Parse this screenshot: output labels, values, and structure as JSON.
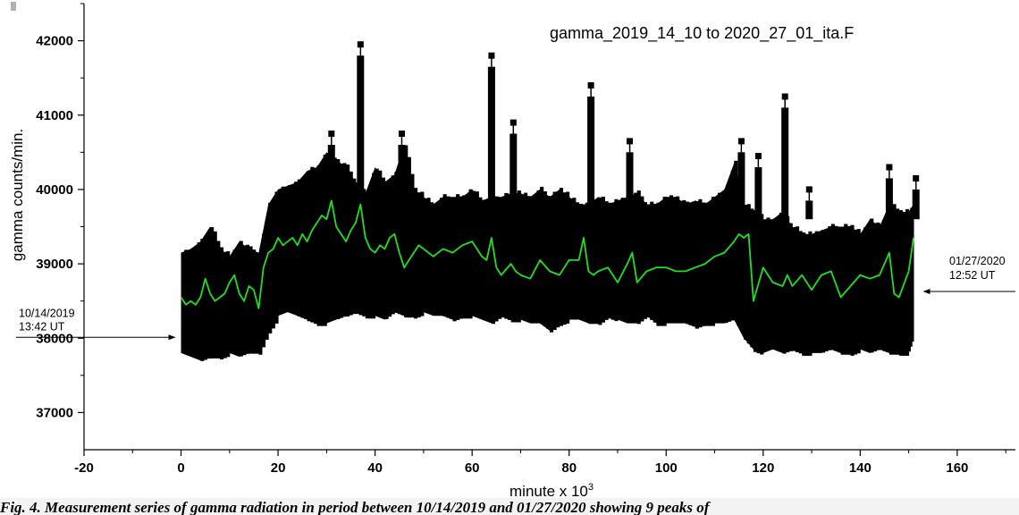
{
  "chart_data": {
    "type": "line",
    "title": "gamma_2019_14_10 to 2020_27_01_ita.F",
    "xlabel": "minute x 10",
    "xlabel_superscript": "3",
    "ylabel": "gamma counts/min.",
    "xlim": [
      -20,
      172
    ],
    "ylim": [
      36500,
      42500
    ],
    "x_ticks": [
      -20,
      0,
      20,
      40,
      60,
      80,
      100,
      120,
      140,
      160
    ],
    "y_ticks": [
      37000,
      38000,
      39000,
      40000,
      41000,
      42000
    ],
    "grid": false,
    "series": [
      {
        "style": "black-band-with-errorbars",
        "color": "#000000",
        "x": [
          0,
          2,
          4,
          6,
          8,
          10,
          12,
          14,
          16,
          18,
          20,
          22,
          24,
          26,
          28,
          30,
          32,
          34,
          36,
          38,
          40,
          42,
          44,
          46,
          48,
          50,
          52,
          54,
          56,
          58,
          60,
          62,
          64,
          66,
          68,
          70,
          72,
          74,
          76,
          78,
          80,
          82,
          84,
          86,
          88,
          90,
          92,
          94,
          96,
          98,
          100,
          102,
          104,
          106,
          108,
          110,
          112,
          114,
          116,
          118,
          120,
          122,
          124,
          126,
          128,
          130,
          132,
          134,
          136,
          138,
          140,
          142,
          144,
          146,
          148,
          150,
          151
        ],
        "lower": [
          37800,
          37750,
          37700,
          37750,
          37750,
          37800,
          37750,
          37800,
          37800,
          38100,
          38300,
          38350,
          38300,
          38250,
          38200,
          38200,
          38250,
          38300,
          38350,
          38300,
          38300,
          38250,
          38350,
          38300,
          38300,
          38350,
          38300,
          38300,
          38250,
          38300,
          38300,
          38250,
          38200,
          38300,
          38250,
          38250,
          38200,
          38200,
          38100,
          38200,
          38250,
          38250,
          38200,
          38200,
          38300,
          38250,
          38200,
          38200,
          38300,
          38200,
          38200,
          38200,
          38200,
          38150,
          38200,
          38200,
          38200,
          38250,
          38000,
          37850,
          37800,
          37850,
          37800,
          37850,
          37800,
          37800,
          37800,
          37850,
          37800,
          37800,
          37850,
          37800,
          37850,
          37800,
          37800,
          37800,
          38000
        ],
        "upper": [
          39150,
          39200,
          39300,
          39500,
          39200,
          39100,
          39300,
          39200,
          39150,
          39800,
          40000,
          40050,
          40100,
          40250,
          40300,
          40500,
          40400,
          40300,
          40100,
          39950,
          40300,
          40100,
          40200,
          40600,
          40000,
          39900,
          39800,
          39900,
          39900,
          39900,
          40000,
          39850,
          39900,
          39900,
          39950,
          39950,
          39900,
          40000,
          39900,
          40000,
          39900,
          39800,
          39800,
          39900,
          39800,
          39850,
          39900,
          39950,
          39800,
          39800,
          39900,
          39900,
          39800,
          39850,
          39800,
          39900,
          40000,
          40350,
          39800,
          39700,
          39600,
          39600,
          39700,
          39500,
          39400,
          39400,
          39450,
          39500,
          39500,
          39500,
          39400,
          39600,
          39500,
          39800,
          39700,
          39700,
          39800
        ],
        "spikes": [
          {
            "x": 31,
            "y": 40750
          },
          {
            "x": 37,
            "y": 41950
          },
          {
            "x": 45.5,
            "y": 40750
          },
          {
            "x": 64,
            "y": 41800
          },
          {
            "x": 68.5,
            "y": 40900
          },
          {
            "x": 84.5,
            "y": 41400
          },
          {
            "x": 92.5,
            "y": 40650
          },
          {
            "x": 115.5,
            "y": 40650
          },
          {
            "x": 119,
            "y": 40450
          },
          {
            "x": 124.5,
            "y": 41250
          },
          {
            "x": 129.5,
            "y": 40000
          },
          {
            "x": 146,
            "y": 40300
          },
          {
            "x": 151.5,
            "y": 40150
          }
        ]
      },
      {
        "style": "smoothed-line",
        "color": "#22dd22",
        "x": [
          0,
          1,
          2,
          3,
          4,
          5,
          6,
          7,
          8,
          9,
          10,
          11,
          12,
          13,
          14,
          15,
          16,
          17,
          18,
          19,
          20,
          21,
          22,
          23,
          24,
          25,
          26,
          27,
          28,
          29,
          30,
          31,
          32,
          33,
          34,
          35,
          36,
          37,
          38,
          39,
          40,
          41,
          42,
          43,
          44,
          45,
          46,
          47,
          48,
          49,
          50,
          52,
          54,
          56,
          58,
          60,
          62,
          63,
          64,
          65,
          66,
          68,
          69,
          70,
          72,
          74,
          76,
          78,
          80,
          82,
          83,
          84,
          85,
          86,
          88,
          90,
          92,
          93,
          94,
          96,
          98,
          100,
          102,
          104,
          106,
          108,
          110,
          112,
          114,
          115,
          116,
          117,
          118,
          120,
          122,
          124,
          125,
          126,
          128,
          130,
          132,
          134,
          136,
          138,
          140,
          142,
          144,
          146,
          147,
          148,
          150,
          151
        ],
        "y": [
          38550,
          38450,
          38500,
          38450,
          38550,
          38800,
          38600,
          38500,
          38550,
          38600,
          38750,
          38850,
          38600,
          38500,
          38700,
          38650,
          38400,
          38950,
          39150,
          39200,
          39350,
          39250,
          39300,
          39350,
          39250,
          39400,
          39300,
          39450,
          39550,
          39650,
          39600,
          39850,
          39500,
          39400,
          39300,
          39450,
          39550,
          39800,
          39350,
          39200,
          39150,
          39250,
          39200,
          39350,
          39400,
          39150,
          38950,
          39050,
          39150,
          39250,
          39200,
          39100,
          39200,
          39150,
          39250,
          39300,
          39100,
          39050,
          39350,
          38950,
          38850,
          39000,
          38900,
          38850,
          38800,
          39050,
          38900,
          38850,
          39050,
          39050,
          39350,
          38900,
          38850,
          38900,
          38950,
          38750,
          39000,
          39150,
          38750,
          38900,
          38950,
          38950,
          38900,
          38900,
          38950,
          39000,
          39100,
          39150,
          39300,
          39400,
          39350,
          39400,
          38500,
          38950,
          38750,
          38700,
          38850,
          38700,
          38850,
          38650,
          38850,
          38900,
          38550,
          38700,
          38850,
          38800,
          38850,
          39150,
          38600,
          38550,
          38900,
          39350
        ]
      }
    ],
    "annotations": [
      {
        "line1": "10/14/2019",
        "line2": "13:42 UT",
        "x": 0,
        "y": 38000,
        "side": "left"
      },
      {
        "line1": "01/27/2020",
        "line2": "12:52 UT",
        "x": 152,
        "y": 38700,
        "side": "right"
      }
    ]
  },
  "caption": {
    "text": "Fig. 4. Measurement series of gamma radiation in period between 10/14/2019 and 01/27/2020 showing 9 peaks of"
  }
}
